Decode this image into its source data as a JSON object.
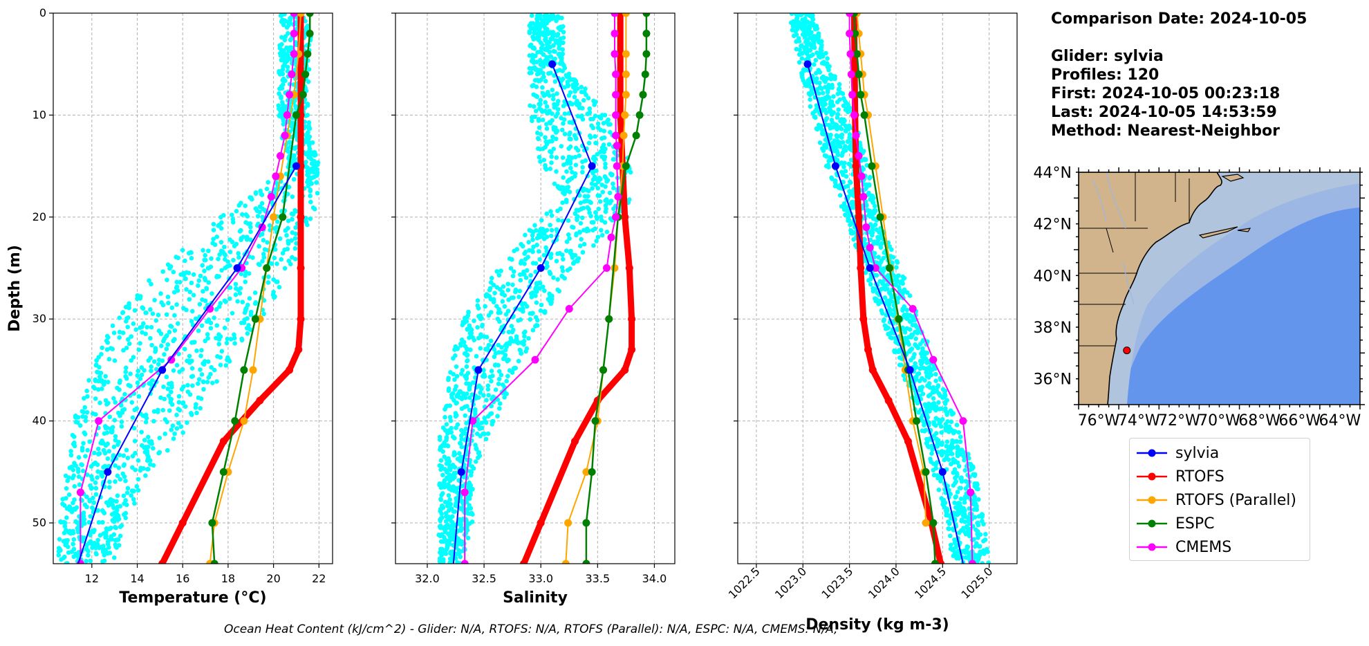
{
  "info": {
    "comparison_date": "Comparison Date: 2024-10-05",
    "glider": "Glider: sylvia",
    "profiles": "Profiles: 120",
    "first": "First: 2024-10-05 00:23:18",
    "last": "Last: 2024-10-05 14:53:59",
    "method": "Method: Nearest-Neighbor"
  },
  "footer": "Ocean Heat Content (kJ/cm^2) - Glider: N/A,  RTOFS: N/A,  RTOFS (Parallel): N/A,  ESPC: N/A,  CMEMS: N/A,",
  "colors": {
    "sylvia": "#0000ff",
    "RTOFS": "#ff0000",
    "RTOFS (Parallel)": "#ffa500",
    "ESPC": "#008000",
    "CMEMS": "#ff00ff",
    "glider_scatter": "#00ffff"
  },
  "legend": [
    "sylvia",
    "RTOFS",
    "RTOFS (Parallel)",
    "ESPC",
    "CMEMS"
  ],
  "chart_data": [
    {
      "type": "line",
      "panel": "temperature",
      "xlabel": "Temperature (°C)",
      "ylabel": "Depth (m)",
      "xlim": [
        10.3,
        22.6
      ],
      "ylim": [
        54,
        0
      ],
      "xticks": [
        12,
        14,
        16,
        18,
        20,
        22
      ],
      "yticks": [
        0,
        10,
        20,
        30,
        40,
        50
      ],
      "grid": true,
      "scatter_band": [
        [
          0,
          20.3,
          21.7
        ],
        [
          10,
          20.2,
          21.5
        ],
        [
          15,
          20.6,
          22.0
        ],
        [
          18,
          19.0,
          22.0
        ],
        [
          20,
          17.5,
          21.8
        ],
        [
          25,
          15.0,
          20.8
        ],
        [
          30,
          13.0,
          19.5
        ],
        [
          35,
          12.0,
          17.8
        ],
        [
          40,
          11.2,
          16.5
        ],
        [
          45,
          10.8,
          14.5
        ],
        [
          50,
          10.6,
          13.5
        ],
        [
          54,
          10.5,
          13.0
        ]
      ],
      "series": [
        {
          "name": "sylvia",
          "x": [
            21.0,
            18.4,
            15.1,
            12.7,
            11.4
          ],
          "y": [
            15,
            25,
            35,
            45,
            54
          ],
          "markers": [
            21.0,
            18.4,
            15.1,
            12.7
          ],
          "marker_y": [
            15,
            25,
            35,
            45
          ]
        },
        {
          "name": "RTOFS",
          "x": [
            21.2,
            21.2,
            21.2,
            21.2,
            21.2,
            21.2,
            21.1,
            20.7,
            19.4,
            17.8,
            16.0,
            15.1
          ],
          "y": [
            0,
            10,
            15,
            20,
            25,
            30,
            33,
            35,
            38,
            42,
            50,
            54
          ]
        },
        {
          "name": "RTOFS (Parallel)",
          "x": [
            21.2,
            21.1,
            20.9,
            20.6,
            20.3,
            20.0,
            19.7,
            19.4,
            19.1,
            18.7,
            18.0,
            17.4,
            17.2
          ],
          "y": [
            0,
            4,
            8,
            12,
            16,
            20,
            25,
            30,
            35,
            40,
            45,
            50,
            54
          ]
        },
        {
          "name": "ESPC",
          "x": [
            21.6,
            21.6,
            21.5,
            21.4,
            21.3,
            21.0,
            20.4,
            19.7,
            19.2,
            18.7,
            18.3,
            17.8,
            17.3,
            17.4
          ],
          "y": [
            0,
            2,
            4,
            6,
            8,
            10,
            20,
            25,
            30,
            35,
            40,
            45,
            50,
            54
          ]
        },
        {
          "name": "CMEMS",
          "x": [
            20.9,
            20.9,
            20.9,
            20.8,
            20.7,
            20.6,
            20.5,
            20.3,
            20.1,
            19.9,
            19.5,
            18.6,
            17.2,
            15.5,
            12.3,
            11.5,
            11.5
          ],
          "y": [
            0,
            2,
            4,
            6,
            8,
            10,
            12,
            14,
            16,
            18,
            21,
            25,
            29,
            34,
            40,
            47,
            54
          ]
        }
      ]
    },
    {
      "type": "line",
      "panel": "salinity",
      "xlabel": "Salinity",
      "xlim": [
        31.72,
        34.18
      ],
      "ylim": [
        54,
        0
      ],
      "xticks": [
        32.0,
        32.5,
        33.0,
        33.5,
        34.0
      ],
      "yticks": [
        0,
        10,
        20,
        30,
        40,
        50
      ],
      "grid": true,
      "scatter_band": [
        [
          5,
          32.9,
          33.2
        ],
        [
          10,
          32.9,
          33.6
        ],
        [
          15,
          33.0,
          33.8
        ],
        [
          18,
          33.2,
          33.8
        ],
        [
          20,
          33.0,
          33.7
        ],
        [
          25,
          32.6,
          33.3
        ],
        [
          30,
          32.3,
          33.0
        ],
        [
          35,
          32.2,
          32.8
        ],
        [
          40,
          32.1,
          32.6
        ],
        [
          45,
          32.1,
          32.4
        ],
        [
          50,
          32.1,
          32.4
        ],
        [
          54,
          32.1,
          32.3
        ]
      ],
      "series": [
        {
          "name": "sylvia",
          "x": [
            33.1,
            33.45,
            33.0,
            32.45,
            32.3,
            32.23
          ],
          "y": [
            5,
            15,
            25,
            35,
            45,
            54
          ],
          "markers": [
            33.1,
            33.45,
            33.0,
            32.45,
            32.3
          ],
          "marker_y": [
            5,
            15,
            25,
            35,
            45
          ]
        },
        {
          "name": "RTOFS",
          "x": [
            33.7,
            33.7,
            33.72,
            33.74,
            33.78,
            33.8,
            33.8,
            33.74,
            33.5,
            33.3,
            33.0,
            32.85
          ],
          "y": [
            0,
            10,
            15,
            20,
            25,
            30,
            33,
            35,
            38,
            42,
            50,
            54
          ]
        },
        {
          "name": "RTOFS (Parallel)",
          "x": [
            33.75,
            33.75,
            33.75,
            33.75,
            33.74,
            33.73,
            33.72,
            33.68,
            33.65,
            33.6,
            33.55,
            33.5,
            33.4,
            33.24,
            33.22
          ],
          "y": [
            0,
            4,
            6,
            8,
            10,
            12,
            15,
            20,
            25,
            30,
            35,
            40,
            45,
            50,
            54
          ]
        },
        {
          "name": "ESPC",
          "x": [
            33.93,
            33.93,
            33.93,
            33.92,
            33.9,
            33.87,
            33.84,
            33.75,
            33.68,
            33.6,
            33.55,
            33.48,
            33.45,
            33.4,
            33.4
          ],
          "y": [
            0,
            2,
            4,
            6,
            8,
            10,
            12,
            15,
            20,
            30,
            35,
            40,
            45,
            50,
            54
          ]
        },
        {
          "name": "CMEMS",
          "x": [
            33.65,
            33.65,
            33.65,
            33.66,
            33.66,
            33.66,
            33.66,
            33.67,
            33.67,
            33.68,
            33.66,
            33.62,
            33.58,
            33.25,
            32.95,
            32.4,
            32.33,
            32.33
          ],
          "y": [
            0,
            2,
            4,
            6,
            8,
            10,
            12,
            13,
            15,
            18,
            20,
            22,
            25,
            29,
            34,
            40,
            47,
            54
          ]
        }
      ]
    },
    {
      "type": "line",
      "panel": "density",
      "xlabel": "Density (kg m-3)",
      "xlim": [
        1022.3,
        1025.3
      ],
      "ylim": [
        54,
        0
      ],
      "xticks": [
        1022.5,
        1023.0,
        1023.5,
        1024.0,
        1024.5,
        1025.0
      ],
      "yticks": [
        0,
        10,
        20,
        30,
        40,
        50
      ],
      "grid": true,
      "scatter_band": [
        [
          0,
          1022.85,
          1023.1
        ],
        [
          5,
          1022.95,
          1023.3
        ],
        [
          10,
          1023.1,
          1023.55
        ],
        [
          15,
          1023.25,
          1023.7
        ],
        [
          20,
          1023.45,
          1023.8
        ],
        [
          25,
          1023.65,
          1024.05
        ],
        [
          30,
          1023.85,
          1024.25
        ],
        [
          35,
          1024.05,
          1024.45
        ],
        [
          40,
          1024.25,
          1024.65
        ],
        [
          45,
          1024.4,
          1024.85
        ],
        [
          50,
          1024.55,
          1024.95
        ],
        [
          54,
          1024.6,
          1025.0
        ]
      ],
      "series": [
        {
          "name": "sylvia",
          "x": [
            1023.05,
            1023.35,
            1023.72,
            1024.15,
            1024.5,
            1024.72
          ],
          "y": [
            5,
            15,
            25,
            35,
            45,
            54
          ],
          "markers": [
            1023.05,
            1023.35,
            1023.72,
            1024.15,
            1024.5
          ],
          "marker_y": [
            5,
            15,
            25,
            35,
            45
          ]
        },
        {
          "name": "RTOFS",
          "x": [
            1023.55,
            1023.56,
            1023.57,
            1023.6,
            1023.62,
            1023.65,
            1023.7,
            1023.75,
            1023.92,
            1024.13,
            1024.38,
            1024.48
          ],
          "y": [
            0,
            10,
            15,
            20,
            25,
            30,
            33,
            35,
            38,
            42,
            50,
            54
          ]
        },
        {
          "name": "RTOFS (Parallel)",
          "x": [
            1023.58,
            1023.6,
            1023.62,
            1023.64,
            1023.66,
            1023.7,
            1023.78,
            1023.86,
            1023.94,
            1024.02,
            1024.1,
            1024.18,
            1024.3,
            1024.32
          ],
          "y": [
            0,
            2,
            4,
            6,
            8,
            10,
            15,
            20,
            25,
            30,
            35,
            40,
            45,
            50
          ]
        },
        {
          "name": "ESPC",
          "x": [
            1023.55,
            1023.56,
            1023.58,
            1023.6,
            1023.62,
            1023.66,
            1023.74,
            1023.83,
            1023.93,
            1024.03,
            1024.13,
            1024.22,
            1024.32,
            1024.4,
            1024.42
          ],
          "y": [
            0,
            2,
            4,
            6,
            8,
            10,
            15,
            20,
            25,
            30,
            35,
            40,
            45,
            50,
            54
          ]
        },
        {
          "name": "CMEMS",
          "x": [
            1023.5,
            1023.5,
            1023.51,
            1023.52,
            1023.53,
            1023.55,
            1023.57,
            1023.6,
            1023.63,
            1023.65,
            1023.68,
            1023.72,
            1023.78,
            1024.18,
            1024.4,
            1024.72,
            1024.8,
            1024.82
          ],
          "y": [
            0,
            2,
            4,
            6,
            8,
            10,
            12,
            14,
            16,
            18,
            21,
            23,
            25,
            29,
            34,
            40,
            47,
            54
          ]
        }
      ]
    }
  ],
  "map": {
    "lat_labels": [
      "44°N",
      "42°N",
      "40°N",
      "38°N",
      "36°N"
    ],
    "lon_labels": [
      "76°W",
      "74°W",
      "72°W",
      "70°W",
      "68°W",
      "66°W",
      "64°W"
    ],
    "land_color": "#d2b48c",
    "shelf_color": "#b0c4de",
    "deep_color": "#6495ed",
    "mid_color": "#9db7e4",
    "glider_lat": 37.1,
    "glider_lon": -74.6,
    "glider_color": "#ff0000"
  }
}
